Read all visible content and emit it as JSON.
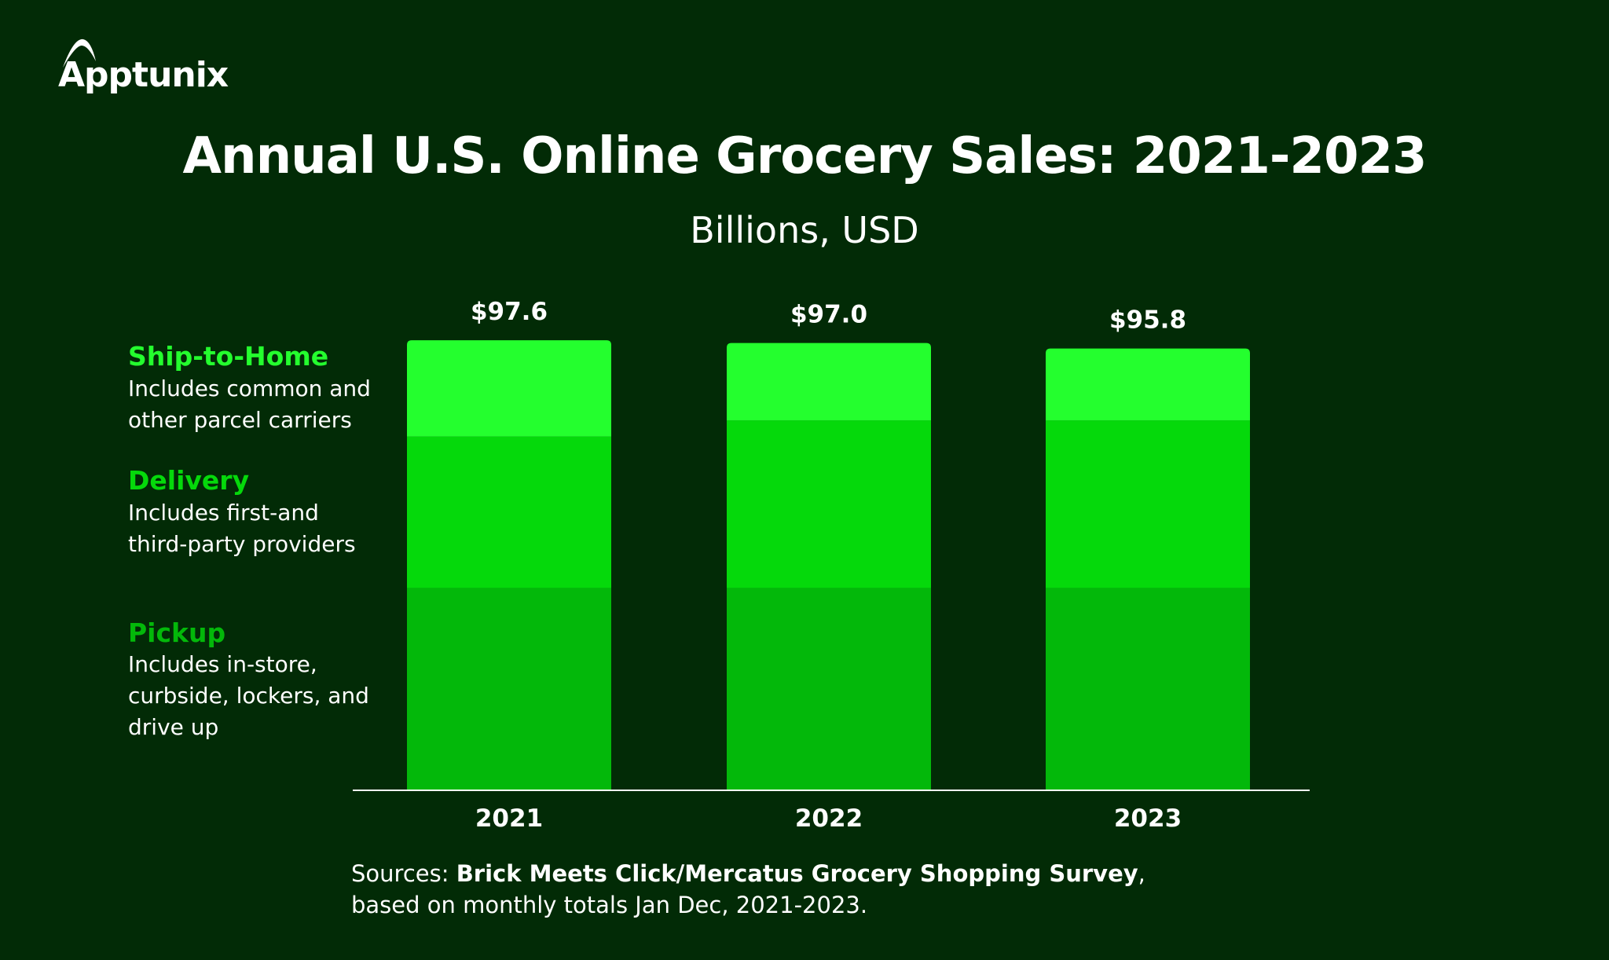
{
  "logo": {
    "text": "Apptunix"
  },
  "chart_data": {
    "type": "bar",
    "stacked": true,
    "title": "Annual U.S. Online Grocery Sales: 2021-2023",
    "subtitle": "Billions, USD",
    "categories": [
      "2021",
      "2022",
      "2023"
    ],
    "totals": [
      97.6,
      97.0,
      95.8
    ],
    "total_labels": [
      "$97.6",
      "$97.0",
      "$95.8"
    ],
    "series": [
      {
        "name": "Pickup",
        "description": "Includes in-store, curbside, lockers, and drive up",
        "description_lines": [
          "Includes in-store,",
          "curbside, lockers, and",
          "drive up"
        ],
        "color": "#03b80a",
        "values": [
          44.0,
          44.0,
          44.0
        ]
      },
      {
        "name": "Delivery",
        "description": "Includes first-and third-party providers",
        "description_lines": [
          "Includes first-and",
          "third-party providers"
        ],
        "color": "#05d90b",
        "values": [
          32.7,
          36.2,
          36.2
        ]
      },
      {
        "name": "Ship-to-Home",
        "description": "Includes common and other parcel carriers",
        "description_lines": [
          "Includes common and",
          "other parcel carriers"
        ],
        "color": "#24ff2e",
        "values": [
          20.9,
          16.8,
          15.6
        ]
      }
    ],
    "ylim": [
      0,
      100
    ],
    "grid": false,
    "legend": "left"
  },
  "sources": {
    "prefix": "Sources: ",
    "bold": "Brick Meets Click/Mercatus Grocery Shopping Survey",
    "suffix": ", based on monthly totals Jan Dec, 2021-2023."
  },
  "colors": {
    "background": "#022b06",
    "text": "#ffffff"
  }
}
